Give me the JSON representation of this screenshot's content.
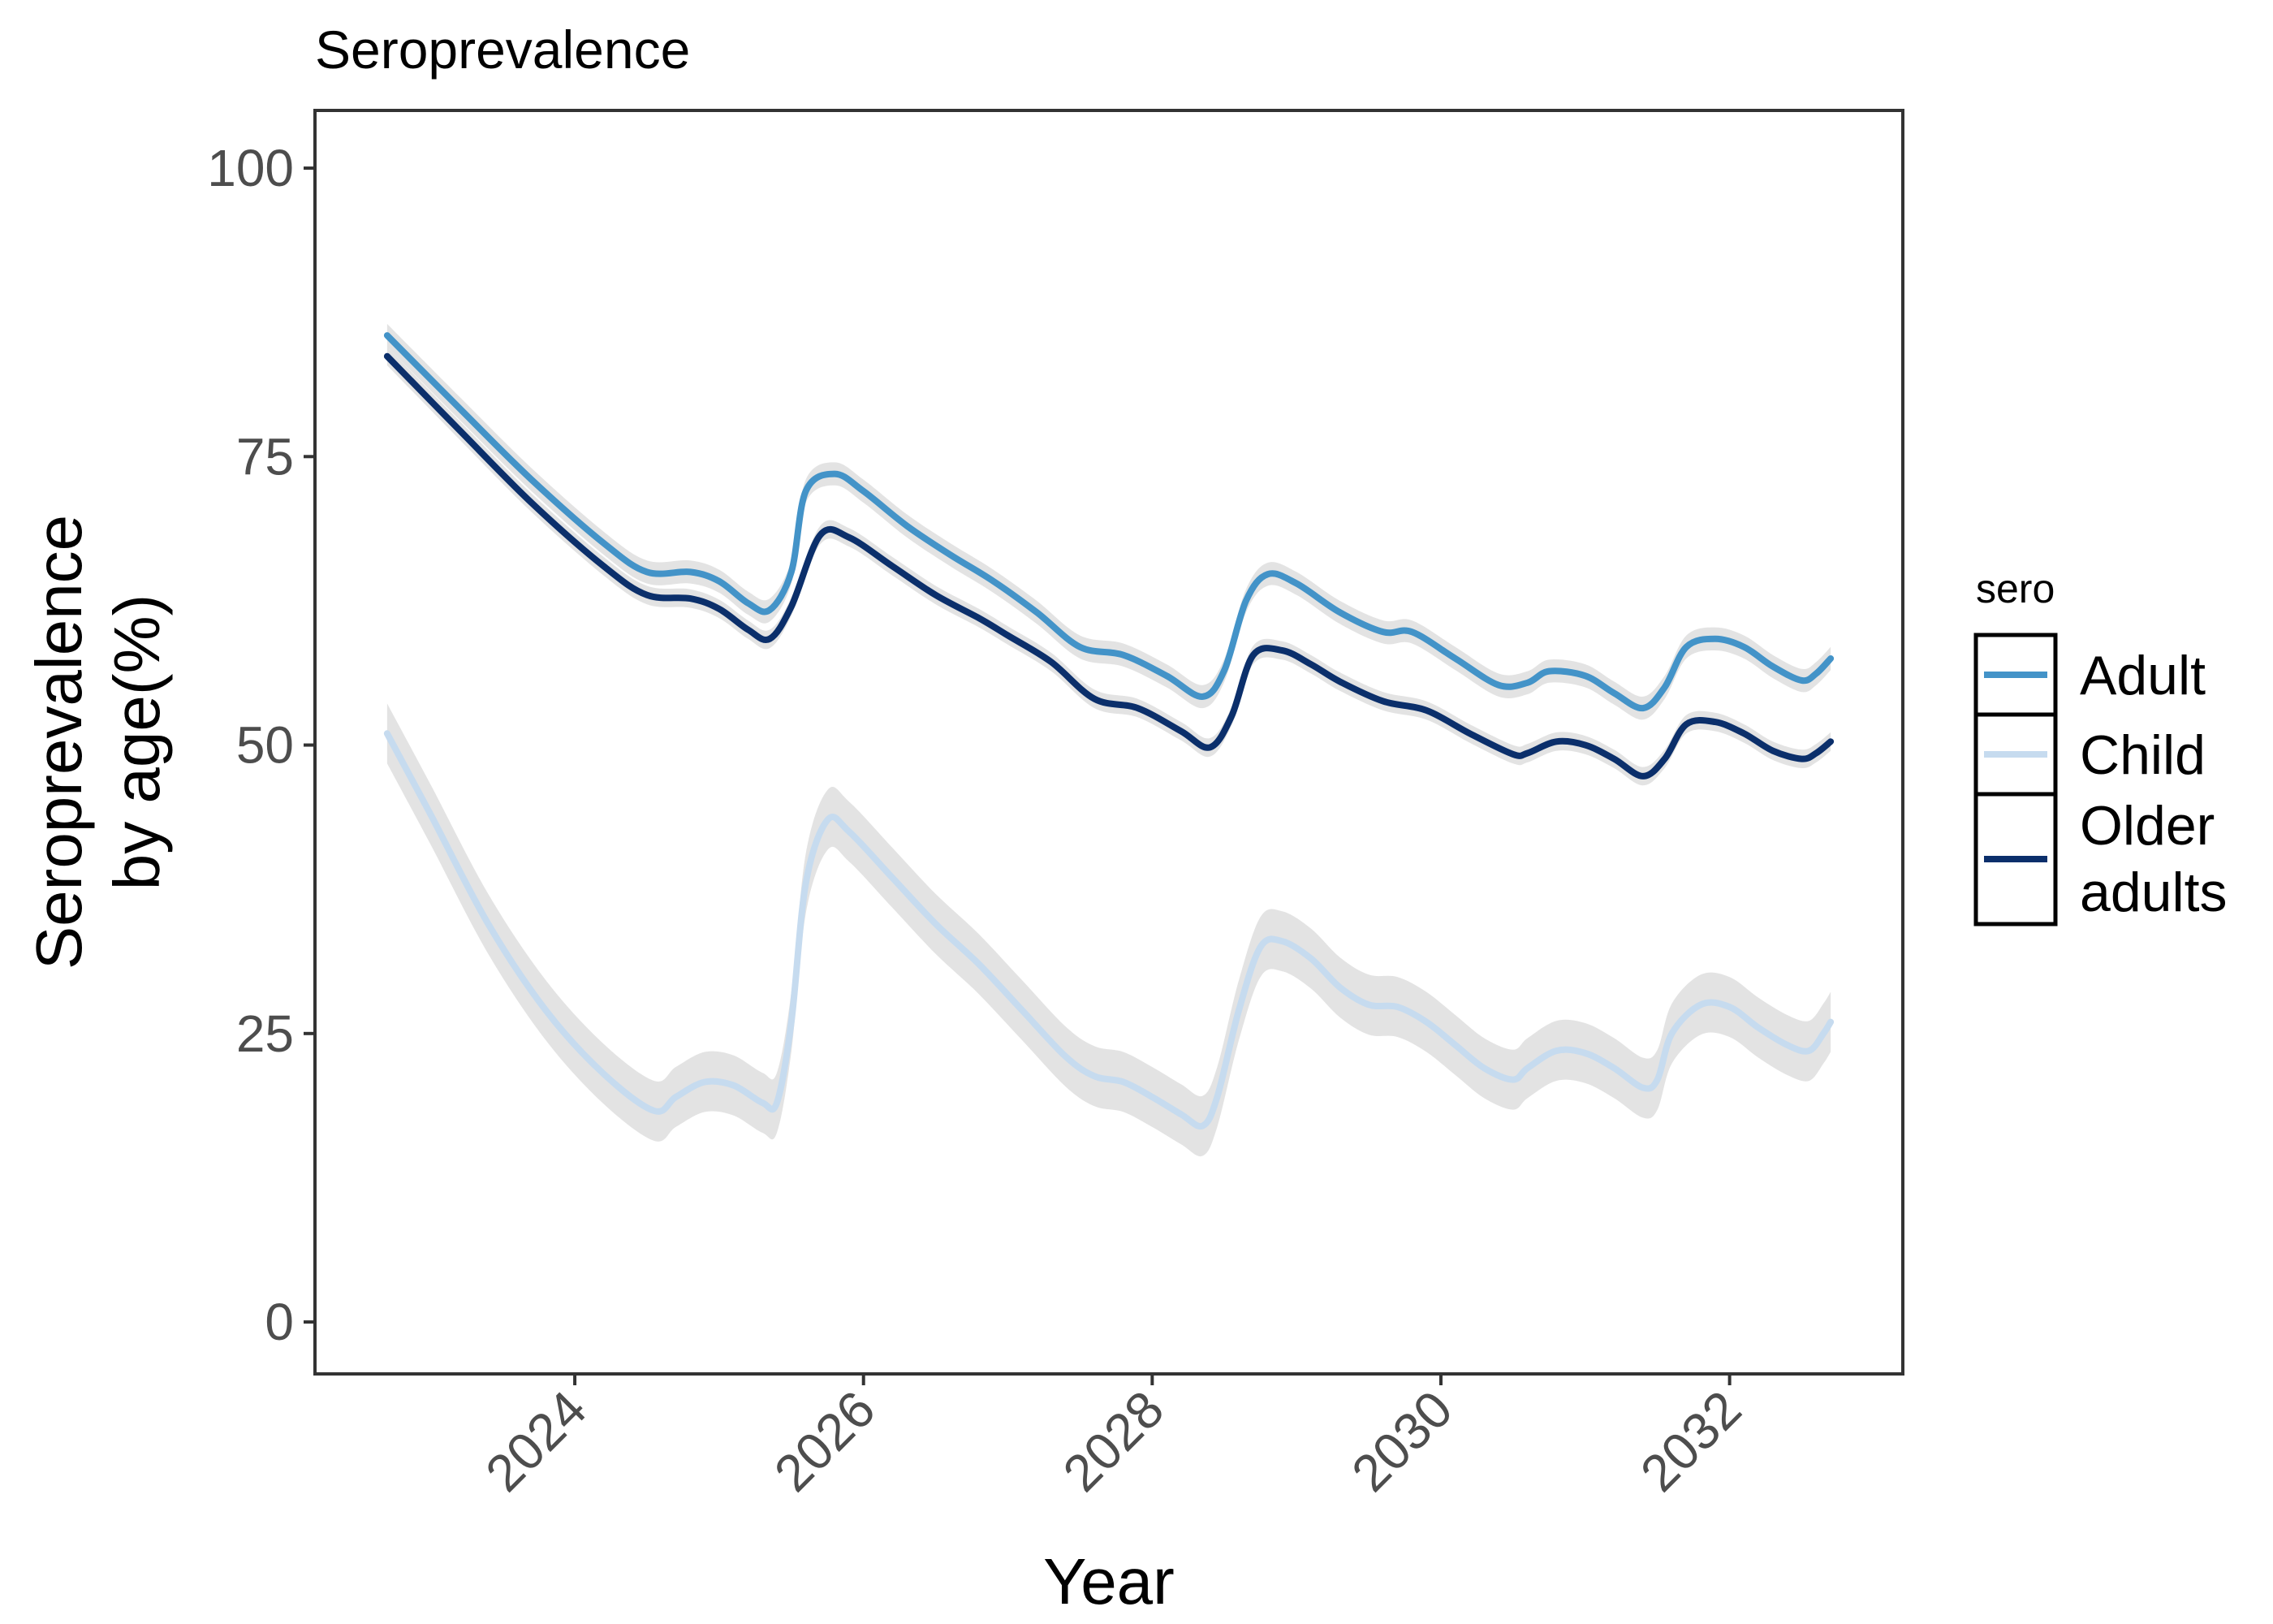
{
  "chart_data": {
    "type": "line",
    "title": "Seroprevalence",
    "xlabel": "Year",
    "ylabel_lines": [
      "Seroprevalence",
      "by age(%)"
    ],
    "xlim": [
      2022.2,
      2033.2
    ],
    "ylim": [
      -4.5,
      105
    ],
    "x_ticks": [
      2024,
      2026,
      2028,
      2030,
      2032
    ],
    "x_tick_labels": [
      "2024",
      "2026",
      "2028",
      "2030",
      "2032"
    ],
    "y_ticks": [
      0,
      25,
      50,
      75,
      100
    ],
    "y_tick_labels": [
      "0",
      "25",
      "50",
      "75",
      "100"
    ],
    "legend": {
      "title": "sero",
      "position": "right"
    },
    "band_color": "#d9d9d9",
    "series": [
      {
        "name": "Older adults",
        "label_lines": [
          "Older",
          "adults"
        ],
        "color": "#0b2f6b",
        "points": [
          [
            2022.7,
            83.7
          ],
          [
            2023.2,
            77.3
          ],
          [
            2023.7,
            71.0
          ],
          [
            2024.2,
            65.5
          ],
          [
            2024.5,
            63.0
          ],
          [
            2024.8,
            62.7
          ],
          [
            2025.0,
            61.8
          ],
          [
            2025.2,
            60.0
          ],
          [
            2025.35,
            59.2
          ],
          [
            2025.5,
            62.0
          ],
          [
            2025.7,
            68.2
          ],
          [
            2025.9,
            68.0
          ],
          [
            2026.2,
            65.5
          ],
          [
            2026.5,
            63.0
          ],
          [
            2026.8,
            61.0
          ],
          [
            2027.0,
            59.5
          ],
          [
            2027.3,
            57.2
          ],
          [
            2027.6,
            54.0
          ],
          [
            2027.9,
            53.2
          ],
          [
            2028.2,
            51.2
          ],
          [
            2028.4,
            49.8
          ],
          [
            2028.55,
            52.5
          ],
          [
            2028.7,
            57.8
          ],
          [
            2028.9,
            58.2
          ],
          [
            2029.1,
            57.0
          ],
          [
            2029.3,
            55.5
          ],
          [
            2029.6,
            53.8
          ],
          [
            2029.9,
            53.0
          ],
          [
            2030.2,
            51.0
          ],
          [
            2030.5,
            49.2
          ],
          [
            2030.6,
            49.3
          ],
          [
            2030.8,
            50.3
          ],
          [
            2031.0,
            50.0
          ],
          [
            2031.2,
            48.8
          ],
          [
            2031.4,
            47.3
          ],
          [
            2031.55,
            48.8
          ],
          [
            2031.7,
            51.8
          ],
          [
            2031.9,
            52.0
          ],
          [
            2032.1,
            51.0
          ],
          [
            2032.3,
            49.5
          ],
          [
            2032.5,
            48.8
          ],
          [
            2032.6,
            49.3
          ],
          [
            2032.7,
            50.3
          ]
        ],
        "band": 0.8
      },
      {
        "name": "Adult",
        "label_lines": [
          "Adult"
        ],
        "color": "#4393c8",
        "points": [
          [
            2022.7,
            85.5
          ],
          [
            2023.2,
            79.2
          ],
          [
            2023.7,
            73.0
          ],
          [
            2024.2,
            67.5
          ],
          [
            2024.5,
            65.0
          ],
          [
            2024.8,
            65.0
          ],
          [
            2025.0,
            64.2
          ],
          [
            2025.2,
            62.3
          ],
          [
            2025.35,
            61.7
          ],
          [
            2025.5,
            65.0
          ],
          [
            2025.6,
            72.0
          ],
          [
            2025.8,
            73.5
          ],
          [
            2026.0,
            72.0
          ],
          [
            2026.3,
            69.0
          ],
          [
            2026.6,
            66.5
          ],
          [
            2026.9,
            64.2
          ],
          [
            2027.2,
            61.5
          ],
          [
            2027.5,
            58.5
          ],
          [
            2027.8,
            57.8
          ],
          [
            2028.1,
            56.0
          ],
          [
            2028.35,
            54.2
          ],
          [
            2028.5,
            56.5
          ],
          [
            2028.65,
            62.5
          ],
          [
            2028.8,
            64.8
          ],
          [
            2029.0,
            64.0
          ],
          [
            2029.3,
            61.5
          ],
          [
            2029.6,
            59.8
          ],
          [
            2029.8,
            59.8
          ],
          [
            2030.1,
            57.5
          ],
          [
            2030.4,
            55.2
          ],
          [
            2030.6,
            55.4
          ],
          [
            2030.75,
            56.4
          ],
          [
            2031.0,
            56.0
          ],
          [
            2031.2,
            54.5
          ],
          [
            2031.4,
            53.2
          ],
          [
            2031.55,
            55.0
          ],
          [
            2031.7,
            58.5
          ],
          [
            2031.9,
            59.2
          ],
          [
            2032.1,
            58.5
          ],
          [
            2032.3,
            56.8
          ],
          [
            2032.5,
            55.6
          ],
          [
            2032.6,
            56.2
          ],
          [
            2032.7,
            57.5
          ]
        ],
        "band": 1.0
      },
      {
        "name": "Child",
        "label_lines": [
          "Child"
        ],
        "color": "#c6dbef",
        "points": [
          [
            2022.7,
            51.0
          ],
          [
            2023.0,
            44.0
          ],
          [
            2023.4,
            34.5
          ],
          [
            2023.8,
            27.0
          ],
          [
            2024.2,
            21.5
          ],
          [
            2024.55,
            18.3
          ],
          [
            2024.7,
            19.5
          ],
          [
            2024.9,
            20.8
          ],
          [
            2025.1,
            20.5
          ],
          [
            2025.3,
            19.0
          ],
          [
            2025.4,
            19.0
          ],
          [
            2025.5,
            26.0
          ],
          [
            2025.6,
            38.0
          ],
          [
            2025.75,
            43.5
          ],
          [
            2025.9,
            42.5
          ],
          [
            2026.2,
            38.5
          ],
          [
            2026.5,
            34.5
          ],
          [
            2026.8,
            31.0
          ],
          [
            2027.1,
            27.0
          ],
          [
            2027.4,
            23.0
          ],
          [
            2027.6,
            21.3
          ],
          [
            2027.8,
            20.8
          ],
          [
            2028.0,
            19.5
          ],
          [
            2028.2,
            18.0
          ],
          [
            2028.35,
            17.0
          ],
          [
            2028.45,
            19.5
          ],
          [
            2028.6,
            27.0
          ],
          [
            2028.75,
            32.5
          ],
          [
            2028.9,
            33.0
          ],
          [
            2029.1,
            31.5
          ],
          [
            2029.3,
            29.0
          ],
          [
            2029.5,
            27.5
          ],
          [
            2029.7,
            27.3
          ],
          [
            2029.9,
            26.0
          ],
          [
            2030.1,
            24.0
          ],
          [
            2030.3,
            22.0
          ],
          [
            2030.5,
            21.0
          ],
          [
            2030.6,
            22.0
          ],
          [
            2030.8,
            23.5
          ],
          [
            2031.0,
            23.3
          ],
          [
            2031.2,
            22.0
          ],
          [
            2031.4,
            20.3
          ],
          [
            2031.5,
            21.0
          ],
          [
            2031.6,
            25.0
          ],
          [
            2031.8,
            27.5
          ],
          [
            2032.0,
            27.3
          ],
          [
            2032.2,
            25.5
          ],
          [
            2032.4,
            24.0
          ],
          [
            2032.55,
            23.5
          ],
          [
            2032.65,
            25.0
          ],
          [
            2032.7,
            26.0
          ]
        ],
        "band": 2.6
      }
    ],
    "legend_order": [
      "Adult",
      "Child",
      "Older adults"
    ]
  }
}
